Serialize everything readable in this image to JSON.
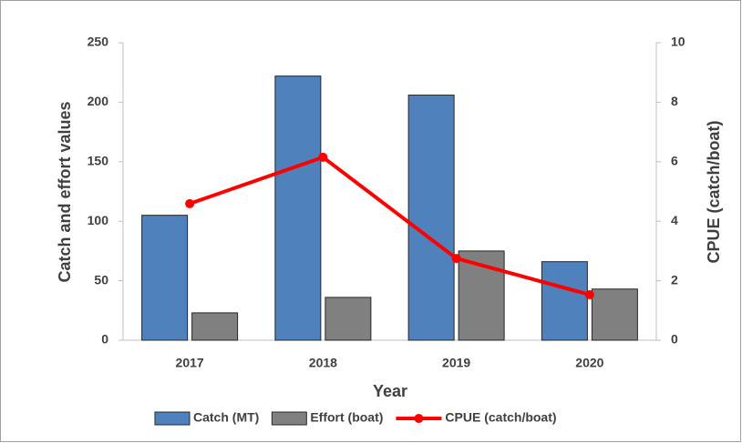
{
  "chart_data": {
    "type": "bar",
    "xlabel": "Year",
    "ylabel": "Catch and effort values",
    "y2label": "CPUE (catch/boat)",
    "categories": [
      "2017",
      "2018",
      "2019",
      "2020"
    ],
    "series": [
      {
        "name": "Catch (MT)",
        "type": "bar",
        "color": "#4f81bd",
        "values": [
          105,
          222,
          206,
          66
        ]
      },
      {
        "name": "Effort (boat)",
        "type": "bar",
        "color": "#808080",
        "values": [
          23,
          36,
          75,
          43
        ]
      },
      {
        "name": "CPUE (catch/boat)",
        "type": "line",
        "axis": "y2",
        "color": "#ff0000",
        "values": [
          4.59,
          6.15,
          2.75,
          1.53
        ]
      }
    ],
    "ylim": [
      0,
      250
    ],
    "yticks": [
      0,
      50,
      100,
      150,
      200,
      250
    ],
    "y2lim": [
      0,
      10
    ],
    "y2ticks": [
      0,
      2,
      4,
      6,
      8,
      10
    ],
    "grid": false,
    "legend": "bottom"
  }
}
